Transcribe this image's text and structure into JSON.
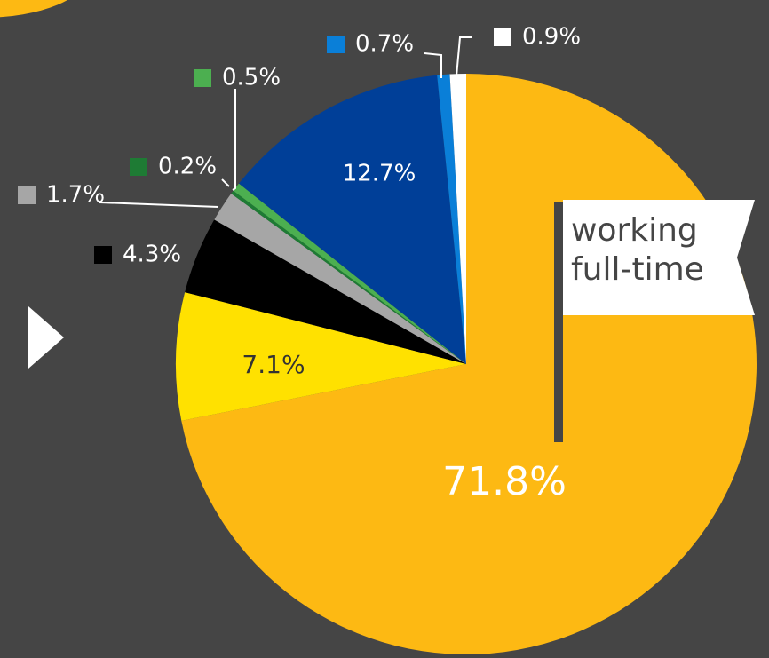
{
  "chart_data": {
    "type": "pie",
    "categories": [
      "working full-time",
      null,
      null,
      null,
      null,
      null,
      null,
      null,
      null
    ],
    "values": [
      71.8,
      7.1,
      4.3,
      1.7,
      0.2,
      0.5,
      12.7,
      0.7,
      0.9
    ],
    "value_labels": [
      "71.8%",
      "7.1%",
      "4.3%",
      "1.7%",
      "0.2%",
      "0.5%",
      "12.7%",
      "0.7%",
      "0.9%"
    ],
    "colors": [
      "#FDB913",
      "#FFE100",
      "#000000",
      "#A6A6A6",
      "#1E7B34",
      "#4CAF50",
      "#003F98",
      "#0A7FD8",
      "#FFFFFF"
    ]
  }
}
